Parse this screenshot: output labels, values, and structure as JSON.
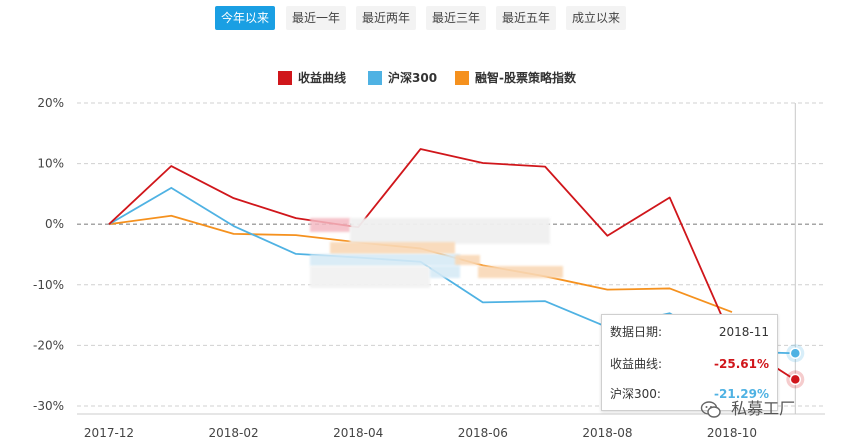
{
  "tabs": [
    {
      "label": "今年以来",
      "active": true
    },
    {
      "label": "最近一年",
      "active": false
    },
    {
      "label": "最近两年",
      "active": false
    },
    {
      "label": "最近三年",
      "active": false
    },
    {
      "label": "最近五年",
      "active": false
    },
    {
      "label": "成立以来",
      "active": false
    }
  ],
  "legend": [
    {
      "label": "收益曲线",
      "color": "#d0161b"
    },
    {
      "label": "沪深300",
      "color": "#4fb2e3"
    },
    {
      "label": "融智-股票策略指数",
      "color": "#f5911e"
    }
  ],
  "tooltip": {
    "date_label": "数据日期:",
    "date_value": "2018-11",
    "row1_label": "收益曲线:",
    "row1_value": "-25.61%",
    "row1_color": "#d0161b",
    "row2_label": "沪深300:",
    "row2_value": "-21.29%",
    "row2_color": "#4fb2e3"
  },
  "watermark": {
    "text": "私募工厂"
  },
  "chart_data": {
    "type": "line",
    "x": [
      "2017-12",
      "2018-01",
      "2018-02",
      "2018-03",
      "2018-04",
      "2018-05",
      "2018-06",
      "2018-07",
      "2018-08",
      "2018-09",
      "2018-10",
      "2018-11"
    ],
    "xticks": [
      "2017-12",
      "2018-02",
      "2018-04",
      "2018-06",
      "2018-08",
      "2018-10"
    ],
    "yticks": [
      "20%",
      "10%",
      "0%",
      "-10%",
      "-20%",
      "-30%"
    ],
    "ytick_values": [
      20,
      10,
      0,
      -10,
      -20,
      -30
    ],
    "ylim": [
      -30,
      20
    ],
    "grid": true,
    "legend_position": "top",
    "series": [
      {
        "name": "收益曲线",
        "color": "#d0161b",
        "values": [
          0,
          9.6,
          4.3,
          1.0,
          -0.5,
          12.4,
          10.1,
          9.5,
          -1.9,
          4.4,
          -19.0,
          -25.61
        ]
      },
      {
        "name": "沪深300",
        "color": "#4fb2e3",
        "values": [
          0,
          6.0,
          -0.3,
          -4.9,
          -5.5,
          -6.2,
          -12.9,
          -12.7,
          -17.0,
          -14.7,
          -21.0,
          -21.29
        ]
      },
      {
        "name": "融智-股票策略指数",
        "color": "#f5911e",
        "values": [
          0,
          1.4,
          -1.6,
          -1.8,
          -3.0,
          -4.0,
          -6.8,
          -8.6,
          -10.8,
          -10.6,
          -14.5,
          null
        ]
      }
    ]
  }
}
